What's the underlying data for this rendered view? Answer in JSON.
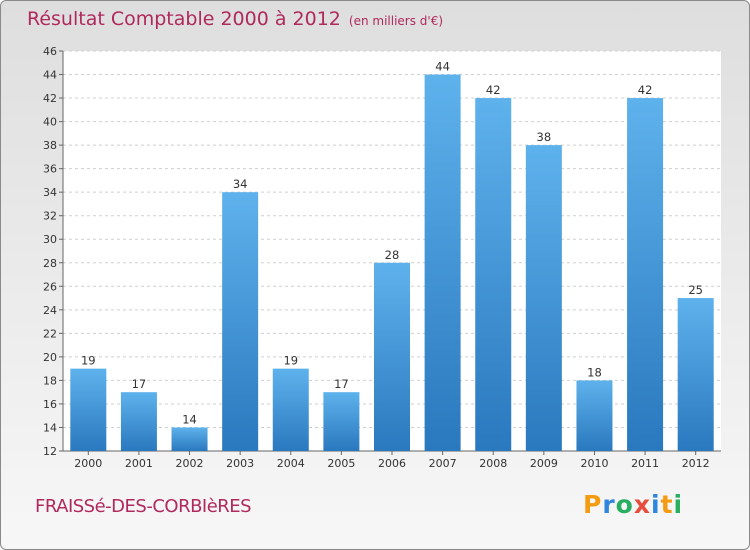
{
  "chart_data": {
    "type": "bar",
    "title": "Résultat Comptable 2000 à 2012",
    "subtitle": "(en milliers d'€)",
    "categories": [
      "2000",
      "2001",
      "2002",
      "2003",
      "2004",
      "2005",
      "2006",
      "2007",
      "2008",
      "2009",
      "2010",
      "2011",
      "2012"
    ],
    "values": [
      19,
      17,
      14,
      34,
      19,
      17,
      28,
      44,
      42,
      38,
      18,
      42,
      25
    ],
    "xlabel": "",
    "ylabel": "",
    "ylim": [
      12,
      46
    ],
    "yticks": [
      12,
      14,
      16,
      18,
      20,
      22,
      24,
      26,
      28,
      30,
      32,
      34,
      36,
      38,
      40,
      42,
      44,
      46
    ],
    "grid": "horizontal-dashed",
    "bar_color": "#3a8fd4"
  },
  "commune": "FRAISSé-DES-CORBIèRES",
  "logo": {
    "letters": [
      "P",
      "r",
      "o",
      "x",
      "i",
      "t",
      "i"
    ],
    "colors": [
      "#f39c12",
      "#2e86de",
      "#27ae60",
      "#e74c3c",
      "#2e86de",
      "#f39c12",
      "#27ae60"
    ]
  }
}
